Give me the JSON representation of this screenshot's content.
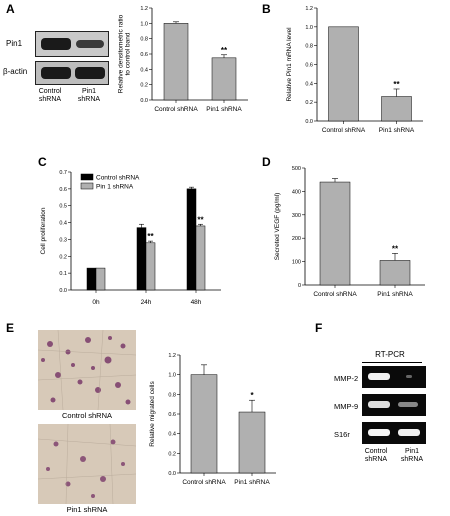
{
  "panels": {
    "A": {
      "letter": "A",
      "blot": {
        "rows": [
          "Pin1",
          "β-actin"
        ],
        "lanes": [
          "Control\nshRNA",
          "Pin1\nshRNA"
        ]
      }
    },
    "B": {
      "letter": "B"
    },
    "C": {
      "letter": "C"
    },
    "D": {
      "letter": "D"
    },
    "E": {
      "letter": "E",
      "images": [
        "Control shRNA",
        "Pin1 shRNA"
      ]
    },
    "F": {
      "letter": "F",
      "title": "RT-PCR",
      "rows": [
        "MMP-2",
        "MMP-9",
        "S16r"
      ],
      "lanes": [
        "Control\nshRNA",
        "Pin1\nshRNA"
      ]
    }
  },
  "chart_data": [
    {
      "id": "A",
      "type": "bar",
      "categories": [
        "Control shRNA",
        "Pin1 shRNA"
      ],
      "values": [
        1.0,
        0.55
      ],
      "errors": [
        0.02,
        0.04
      ],
      "sig": [
        "",
        "**"
      ],
      "ylabel": "Relative densitometric ratio\nto control band",
      "ylim": [
        0,
        1.2
      ],
      "yticks": [
        "0.0",
        "0.2",
        "0.4",
        "0.6",
        "0.8",
        "1.0",
        "1.2"
      ],
      "color": "#b0b0b0"
    },
    {
      "id": "B",
      "type": "bar",
      "categories": [
        "Control shRNA",
        "Pin1 shRNA"
      ],
      "values": [
        1.0,
        0.26
      ],
      "errors": [
        0.0,
        0.08
      ],
      "sig": [
        "",
        "**"
      ],
      "ylabel": "Relative Pin1 mRNA level",
      "ylim": [
        0,
        1.2
      ],
      "yticks": [
        "0.0",
        "0.2",
        "0.4",
        "0.6",
        "0.8",
        "1.0",
        "1.2"
      ],
      "color": "#b0b0b0"
    },
    {
      "id": "C",
      "type": "bar",
      "categories": [
        "0h",
        "24h",
        "48h"
      ],
      "series": [
        {
          "name": "Control shRNA",
          "values": [
            0.13,
            0.37,
            0.6
          ],
          "errors": [
            0.0,
            0.02,
            0.01
          ],
          "color": "#000000"
        },
        {
          "name": "Pin 1 shRNA",
          "values": [
            0.13,
            0.28,
            0.38
          ],
          "errors": [
            0.0,
            0.01,
            0.01
          ],
          "color": "#b0b0b0"
        }
      ],
      "sig": [
        [
          "",
          ""
        ],
        [
          "",
          "**"
        ],
        [
          "",
          "**"
        ]
      ],
      "ylabel": "Cell proliferation",
      "ylim": [
        0,
        0.7
      ],
      "yticks": [
        "0.0",
        "0.1",
        "0.2",
        "0.3",
        "0.4",
        "0.5",
        "0.6",
        "0.7"
      ],
      "legend": "top-left"
    },
    {
      "id": "D",
      "type": "bar",
      "categories": [
        "Control shRNA",
        "Pin1 shRNA"
      ],
      "values": [
        440,
        105
      ],
      "errors": [
        15,
        30
      ],
      "sig": [
        "",
        "**"
      ],
      "ylabel": "Secreted VEGF (pg/ml)",
      "ylim": [
        0,
        500
      ],
      "yticks": [
        "0",
        "100",
        "200",
        "300",
        "400",
        "500"
      ],
      "color": "#b0b0b0"
    },
    {
      "id": "E",
      "type": "bar",
      "categories": [
        "Control shRNA",
        "Pin1 shRNA"
      ],
      "values": [
        1.0,
        0.62
      ],
      "errors": [
        0.1,
        0.12
      ],
      "sig": [
        "",
        "*"
      ],
      "ylabel": "Relative migrated cells",
      "ylim": [
        0,
        1.2
      ],
      "yticks": [
        "0.0",
        "0.2",
        "0.4",
        "0.6",
        "0.8",
        "1.0",
        "1.2"
      ],
      "color": "#b0b0b0"
    }
  ]
}
